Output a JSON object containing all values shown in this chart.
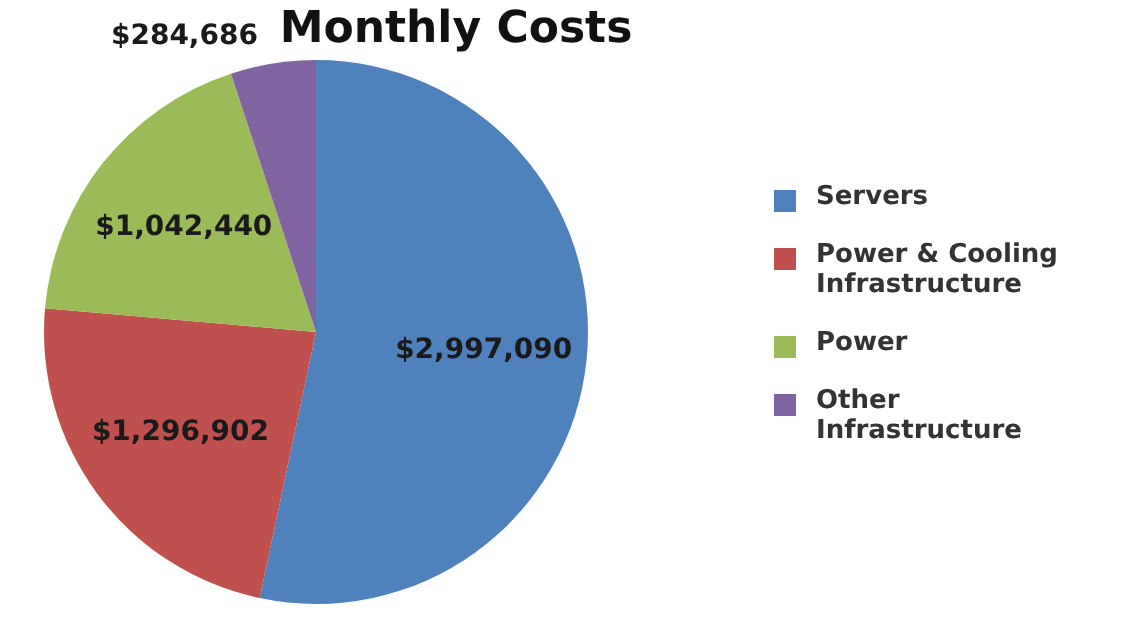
{
  "chart_data": {
    "type": "pie",
    "title": "Monthly Costs",
    "categories": [
      "Servers",
      "Power & Cooling Infrastructure",
      "Power",
      "Other Infrastructure"
    ],
    "values": [
      2997090,
      1296902,
      1042440,
      284686
    ],
    "colors": [
      "#4f81bd",
      "#c0504d",
      "#9bbb59",
      "#8064a2"
    ],
    "value_labels": [
      "$2,997,090",
      "$1,296,902",
      "$1,042,440",
      "$284,686"
    ],
    "legend": "right"
  }
}
